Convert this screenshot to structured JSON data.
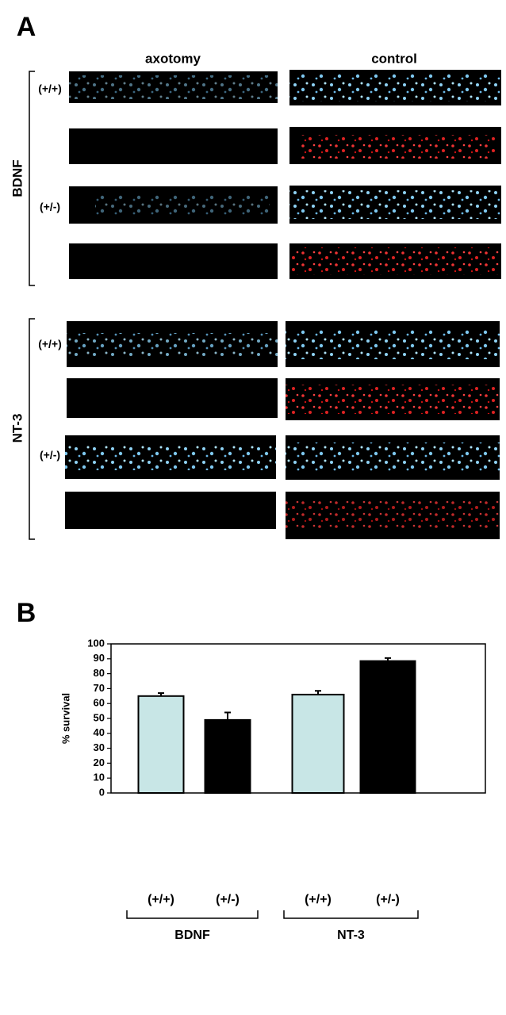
{
  "panel_a": {
    "label": "A",
    "columns": [
      "axotomy",
      "control"
    ],
    "groups": [
      {
        "name": "BDNF",
        "genotypes": [
          "(+/+)",
          "(+/-)"
        ]
      },
      {
        "name": "NT-3",
        "genotypes": [
          "(+/+)",
          "(+/-)"
        ]
      }
    ]
  },
  "chart_data": {
    "type": "bar",
    "panel_label": "B",
    "y_label": "% survival",
    "categories": [
      "(+/+)",
      "(+/-)",
      "(+/+)",
      "(+/-)"
    ],
    "group_labels": [
      "BDNF",
      "NT-3"
    ],
    "values": [
      65,
      49,
      66,
      88.5
    ],
    "errors": [
      2,
      5,
      2.5,
      2
    ],
    "colors": [
      "#c8e6e6",
      "#000000",
      "#c8e6e6",
      "#000000"
    ],
    "ylim": [
      0,
      100
    ],
    "yticks": [
      0,
      10,
      20,
      30,
      40,
      50,
      60,
      70,
      80,
      90,
      100
    ]
  }
}
